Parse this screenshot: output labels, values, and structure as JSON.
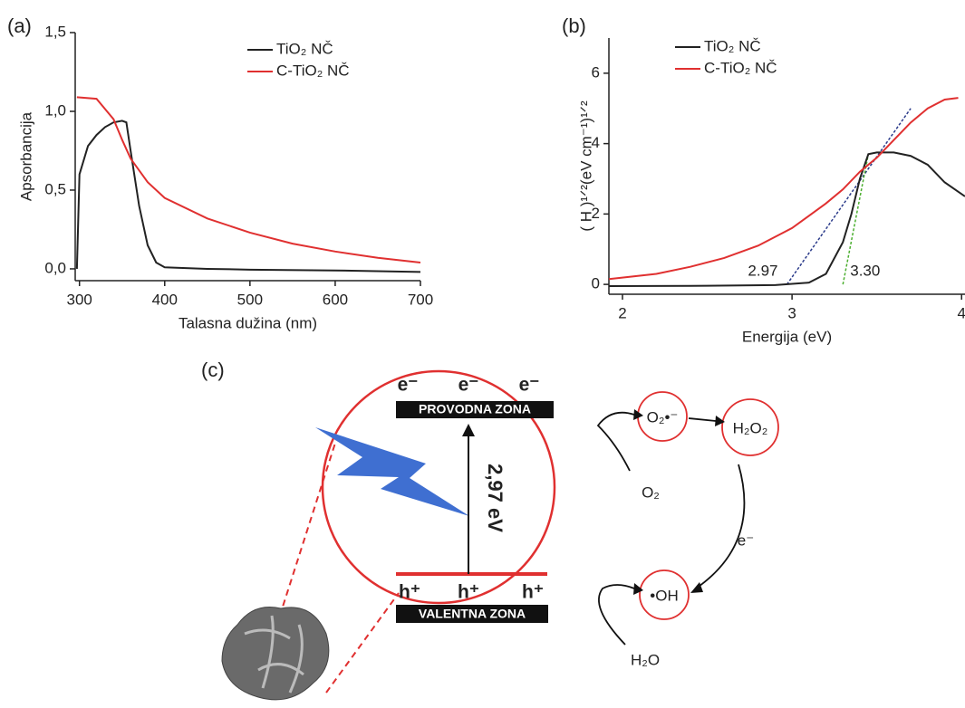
{
  "chart_data": [
    {
      "type": "line",
      "panel": "(a)",
      "xlabel": "Talasna dužina (nm)",
      "ylabel": "Apsorbancija",
      "xlim": [
        295,
        700
      ],
      "xticks": [
        300,
        400,
        500,
        600,
        700
      ],
      "ylim": [
        -0.075,
        1.5
      ],
      "yticks": [
        {
          "value": 0,
          "label": "0,0"
        },
        {
          "value": 0.5,
          "label": "0,5"
        },
        {
          "value": 1,
          "label": "1,0"
        },
        {
          "value": 1.5,
          "label": "1,5"
        }
      ],
      "series": [
        {
          "name": "TiO₂ NČ",
          "color": "#222222",
          "x": [
            297,
            300,
            310,
            320,
            330,
            340,
            350,
            355,
            360,
            370,
            380,
            390,
            400,
            450,
            500,
            600,
            700
          ],
          "values": [
            0,
            0.6,
            0.78,
            0.85,
            0.9,
            0.93,
            0.94,
            0.93,
            0.75,
            0.4,
            0.15,
            0.04,
            0.01,
            0,
            -0.005,
            -0.01,
            -0.02
          ]
        },
        {
          "name": "C-TiO₂ NČ",
          "color": "#e03030",
          "x": [
            297,
            320,
            340,
            350,
            360,
            380,
            400,
            450,
            500,
            550,
            600,
            650,
            700
          ],
          "values": [
            1.09,
            1.08,
            0.95,
            0.82,
            0.7,
            0.55,
            0.45,
            0.32,
            0.23,
            0.16,
            0.11,
            0.07,
            0.04
          ]
        }
      ]
    },
    {
      "type": "line",
      "panel": "(b)",
      "xlabel": "Energija (eV)",
      "ylabel": "( H )¹ᐟ²(eV cm⁻¹)¹ᐟ²",
      "xlim": [
        1.92,
        4.02
      ],
      "xticks": [
        2,
        3,
        4
      ],
      "ylim": [
        -0.28,
        7
      ],
      "yticks": [
        0,
        2,
        4,
        6
      ],
      "series": [
        {
          "name": "TiO₂ NČ",
          "color": "#222222",
          "x": [
            1.92,
            2.5,
            2.9,
            3.1,
            3.2,
            3.3,
            3.35,
            3.4,
            3.45,
            3.5,
            3.6,
            3.7,
            3.8,
            3.9,
            4.02
          ],
          "values": [
            -0.05,
            -0.04,
            -0.02,
            0.05,
            0.3,
            1.2,
            2.0,
            3.0,
            3.7,
            3.75,
            3.75,
            3.65,
            3.4,
            2.9,
            2.5
          ]
        },
        {
          "name": "C-TiO₂ NČ",
          "color": "#e03030",
          "x": [
            1.92,
            2.2,
            2.4,
            2.6,
            2.8,
            3.0,
            3.2,
            3.3,
            3.4,
            3.5,
            3.6,
            3.7,
            3.8,
            3.9,
            3.98
          ],
          "values": [
            0.15,
            0.3,
            0.5,
            0.75,
            1.1,
            1.6,
            2.3,
            2.7,
            3.2,
            3.6,
            4.1,
            4.6,
            5.0,
            5.25,
            5.3
          ]
        }
      ],
      "fit_lines": [
        {
          "color": "#2a3a8a",
          "x": [
            2.97,
            3.7
          ],
          "values": [
            0,
            5.0
          ]
        },
        {
          "color": "#4caf30",
          "x": [
            3.3,
            3.45
          ],
          "values": [
            0,
            3.7
          ]
        }
      ],
      "annotations": [
        "2.97",
        "3.30"
      ]
    }
  ],
  "diagram": {
    "label": "(c)",
    "conduction_band": "PROVODNA ZONA",
    "valence_band": "VALENTNA ZONA",
    "electrons": [
      "e⁻",
      "e⁻",
      "e⁻"
    ],
    "holes": [
      "h⁺",
      "h⁺",
      "h⁺"
    ],
    "band_gap": "2,97 eV",
    "species": [
      "O₂•⁻",
      "H₂O₂",
      "•OH"
    ],
    "reactants": [
      "O₂",
      "H₂O"
    ],
    "electron": "e⁻"
  }
}
